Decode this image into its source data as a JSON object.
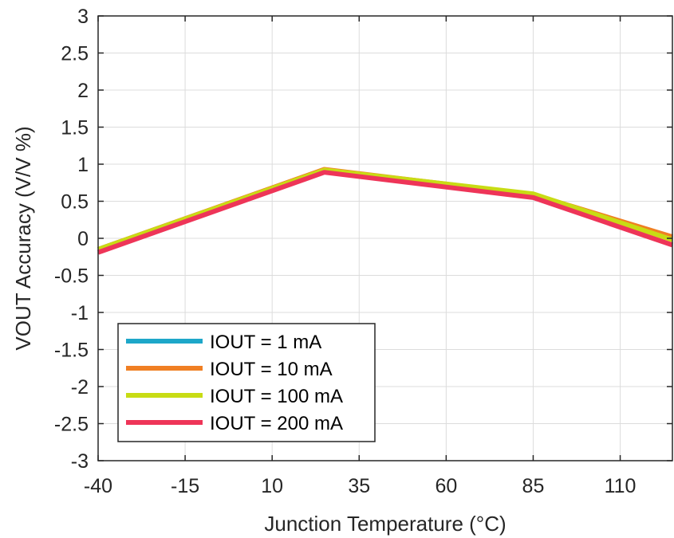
{
  "chart_data": {
    "type": "line",
    "xlabel": "Junction Temperature (°C)",
    "ylabel": "VOUT Accuracy (V/V %)",
    "xlim": [
      -40,
      125
    ],
    "ylim": [
      -3,
      3
    ],
    "xticks": [
      -40,
      -15,
      10,
      35,
      60,
      85,
      110
    ],
    "yticks": [
      -3,
      -2.5,
      -2,
      -1.5,
      -1,
      -0.5,
      0,
      0.5,
      1,
      1.5,
      2,
      2.5,
      3
    ],
    "grid": true,
    "legend_position": "bottom-left",
    "x": [
      -40,
      25,
      85,
      125
    ],
    "series": [
      {
        "name": "IOUT = 1 mA",
        "color": "#1ea7c9",
        "values": [
          -0.15,
          0.92,
          0.58,
          0.0
        ]
      },
      {
        "name": "IOUT = 10 mA",
        "color": "#f07f23",
        "values": [
          -0.15,
          0.93,
          0.59,
          0.02
        ]
      },
      {
        "name": "IOUT = 100 mA",
        "color": "#c8dc14",
        "values": [
          -0.15,
          0.92,
          0.6,
          -0.02
        ]
      },
      {
        "name": "IOUT = 200 mA",
        "color": "#ee3558",
        "values": [
          -0.19,
          0.89,
          0.55,
          -0.09
        ]
      }
    ]
  }
}
